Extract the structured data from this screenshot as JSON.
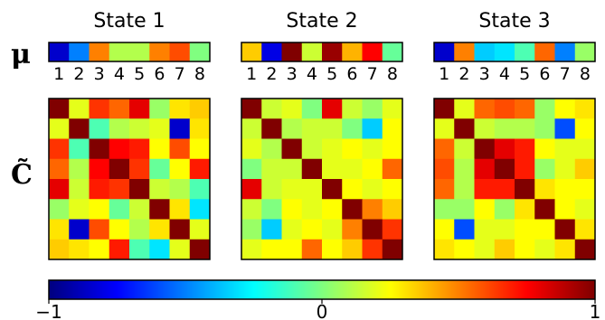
{
  "row_labels": {
    "mu": "μ",
    "C": "C̃"
  },
  "chart_data": {
    "type": "heatmap",
    "colormap": "jet",
    "vmin": -1,
    "vmax": 1,
    "index_labels": [
      "1",
      "2",
      "3",
      "4",
      "5",
      "6",
      "7",
      "8"
    ],
    "colorbar_ticks": [
      {
        "value": -1,
        "label": "−1"
      },
      {
        "value": 0,
        "label": "0"
      },
      {
        "value": 1,
        "label": "1"
      }
    ],
    "states": [
      {
        "title": "State 1",
        "mu": [
          -0.85,
          -0.5,
          0.5,
          0.1,
          0.1,
          0.5,
          0.6,
          0.0
        ],
        "C": [
          [
            1.0,
            0.2,
            0.65,
            0.55,
            0.8,
            0.05,
            0.3,
            0.35
          ],
          [
            0.2,
            1.0,
            -0.1,
            0.1,
            0.15,
            0.2,
            -0.85,
            0.3
          ],
          [
            0.65,
            -0.1,
            1.0,
            0.75,
            0.7,
            0.25,
            0.6,
            0.25
          ],
          [
            0.55,
            0.1,
            0.75,
            1.0,
            0.65,
            -0.05,
            0.25,
            0.7
          ],
          [
            0.8,
            0.15,
            0.7,
            0.65,
            1.0,
            0.15,
            0.1,
            -0.1
          ],
          [
            0.05,
            0.2,
            0.25,
            -0.05,
            0.15,
            1.0,
            0.3,
            -0.3
          ],
          [
            0.3,
            -0.85,
            0.6,
            0.25,
            0.1,
            0.3,
            1.0,
            0.2
          ],
          [
            0.35,
            0.3,
            0.25,
            0.7,
            -0.1,
            -0.3,
            0.2,
            1.0
          ]
        ]
      },
      {
        "title": "State 2",
        "mu": [
          0.35,
          -0.8,
          1.0,
          0.15,
          0.95,
          0.4,
          0.75,
          -0.05
        ],
        "C": [
          [
            1.0,
            0.15,
            0.2,
            0.0,
            0.8,
            0.15,
            0.05,
            0.2
          ],
          [
            0.15,
            1.0,
            0.1,
            0.15,
            0.15,
            0.0,
            -0.35,
            0.25
          ],
          [
            0.2,
            0.1,
            1.0,
            0.15,
            0.2,
            0.25,
            0.2,
            0.25
          ],
          [
            0.0,
            0.15,
            0.15,
            1.0,
            0.2,
            0.2,
            0.25,
            0.55
          ],
          [
            0.8,
            0.15,
            0.2,
            0.2,
            1.0,
            0.25,
            0.2,
            0.25
          ],
          [
            0.15,
            0.0,
            0.25,
            0.2,
            0.25,
            1.0,
            0.5,
            0.35
          ],
          [
            0.05,
            -0.35,
            0.2,
            0.25,
            0.2,
            0.5,
            1.0,
            0.65
          ],
          [
            0.2,
            0.25,
            0.25,
            0.55,
            0.25,
            0.35,
            0.65,
            1.0
          ]
        ]
      },
      {
        "title": "State 3",
        "mu": [
          -0.85,
          0.5,
          -0.35,
          -0.3,
          -0.1,
          0.55,
          -0.5,
          0.05
        ],
        "C": [
          [
            1.0,
            0.2,
            0.55,
            0.6,
            0.55,
            0.05,
            0.25,
            0.3
          ],
          [
            0.2,
            1.0,
            0.15,
            0.1,
            0.1,
            0.05,
            -0.6,
            0.25
          ],
          [
            0.55,
            0.15,
            1.0,
            0.8,
            0.7,
            0.25,
            0.2,
            0.2
          ],
          [
            0.6,
            0.1,
            0.8,
            1.0,
            0.7,
            0.05,
            0.2,
            0.35
          ],
          [
            0.55,
            0.1,
            0.7,
            0.7,
            1.0,
            0.3,
            0.25,
            0.25
          ],
          [
            0.05,
            0.05,
            0.25,
            0.05,
            0.3,
            1.0,
            0.25,
            0.2
          ],
          [
            0.25,
            -0.6,
            0.2,
            0.2,
            0.25,
            0.25,
            1.0,
            0.3
          ],
          [
            0.3,
            0.25,
            0.2,
            0.35,
            0.25,
            0.2,
            0.3,
            1.0
          ]
        ]
      }
    ]
  }
}
